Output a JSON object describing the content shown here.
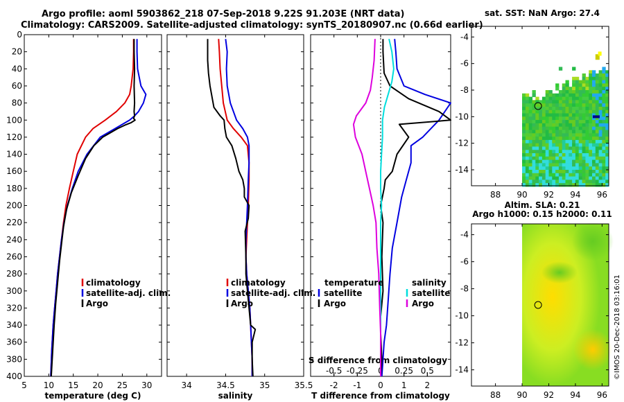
{
  "title": {
    "line1": "Argo profile: aoml 5903862_218 07-Sep-2018 9.22S 91.203E (NRT data)",
    "line2": "Climatology: CARS2009. Satellite-adjusted climatology: synTS_20180907.nc (0.66d earlier)"
  },
  "stamp": "©IMOS 20-Dec-2018 03:16:01",
  "colors": {
    "climatology": "#e00000",
    "satellite": "#0000e0",
    "argo": "#000000",
    "sat_diff": "#00dddd",
    "sal_diff": "#dd00dd"
  },
  "depth_ticks": [
    0,
    20,
    40,
    60,
    80,
    100,
    120,
    140,
    160,
    180,
    200,
    220,
    240,
    260,
    280,
    300,
    320,
    340,
    360,
    380,
    400
  ],
  "chart_data": [
    {
      "type": "line",
      "name": "temperature",
      "xlabel": "temperature (deg C)",
      "ylabel": "depth",
      "xlim": [
        5,
        33
      ],
      "ylim": [
        400,
        0
      ],
      "xticks": [
        5,
        10,
        15,
        20,
        25,
        30
      ],
      "legend": {
        "position": "bottom-right",
        "items": [
          "climatology",
          "satellite-adj. clim.",
          "Argo"
        ]
      },
      "series": [
        {
          "name": "climatology",
          "color": "#e00000",
          "x": [
            27.3,
            27.3,
            27.2,
            26.8,
            26.5,
            25.5,
            23.8,
            21.5,
            19.0,
            17.5,
            15.8,
            15.0,
            14.2,
            13.5,
            13.0,
            12.6,
            12.2,
            11.8,
            11.5,
            11.2,
            10.9,
            10.6,
            10.4
          ],
          "y": [
            5,
            20,
            40,
            60,
            70,
            80,
            90,
            100,
            110,
            120,
            140,
            160,
            180,
            200,
            220,
            240,
            260,
            280,
            300,
            320,
            340,
            370,
            400
          ]
        },
        {
          "name": "satellite-adj. clim.",
          "color": "#0000e0",
          "x": [
            28.0,
            28.0,
            28.1,
            28.8,
            29.8,
            29.3,
            28.3,
            27.5,
            26.5,
            23.5,
            20.5,
            17.8,
            16.0,
            14.8,
            13.8,
            13.1,
            12.6,
            12.2,
            11.8,
            11.5,
            11.2,
            10.9,
            10.6,
            10.4
          ],
          "y": [
            5,
            20,
            40,
            60,
            70,
            80,
            90,
            95,
            100,
            110,
            120,
            140,
            160,
            180,
            200,
            220,
            240,
            260,
            280,
            300,
            320,
            340,
            370,
            400
          ]
        },
        {
          "name": "Argo",
          "color": "#000000",
          "x": [
            27.4,
            27.4,
            27.5,
            27.4,
            27.5,
            27.4,
            27.5,
            27.3,
            27.6,
            26.8,
            25.5,
            24.0,
            22.5,
            21.0,
            19.2,
            17.5,
            16.0,
            14.6,
            13.6,
            13.0,
            12.6,
            12.2,
            11.8,
            11.4,
            11.1,
            10.8,
            10.5
          ],
          "y": [
            5,
            20,
            40,
            60,
            80,
            90,
            95,
            98,
            100,
            103,
            106,
            110,
            115,
            120,
            130,
            145,
            165,
            185,
            205,
            225,
            245,
            265,
            290,
            315,
            340,
            370,
            400
          ]
        }
      ]
    },
    {
      "type": "line",
      "name": "salinity",
      "xlabel": "salinity",
      "ylabel": "depth",
      "xlim": [
        33.75,
        35.5
      ],
      "ylim": [
        400,
        0
      ],
      "xticks": [
        34,
        34.5,
        35,
        35.5
      ],
      "legend": {
        "position": "bottom-right",
        "items": [
          "climatology",
          "satellite-adj. clim.",
          "Argo"
        ]
      },
      "series": [
        {
          "name": "climatology",
          "color": "#e00000",
          "x": [
            34.41,
            34.42,
            34.43,
            34.45,
            34.47,
            34.52,
            34.6,
            34.7,
            34.78,
            34.8,
            34.8,
            34.79,
            34.78,
            34.77,
            34.76,
            34.77,
            34.79,
            34.81,
            34.82,
            34.83,
            34.84,
            34.84
          ],
          "y": [
            5,
            20,
            40,
            60,
            80,
            100,
            110,
            120,
            130,
            150,
            170,
            200,
            220,
            240,
            260,
            280,
            300,
            320,
            340,
            360,
            380,
            400
          ]
        },
        {
          "name": "satellite-adj. clim.",
          "color": "#0000e0",
          "x": [
            34.5,
            34.52,
            34.51,
            34.52,
            34.56,
            34.64,
            34.72,
            34.78,
            34.8,
            34.8,
            34.79,
            34.78,
            34.77,
            34.76,
            34.76,
            34.77,
            34.79,
            34.81,
            34.82,
            34.83,
            34.84,
            34.84
          ],
          "y": [
            5,
            20,
            40,
            60,
            80,
            100,
            110,
            120,
            130,
            150,
            170,
            200,
            220,
            240,
            260,
            280,
            300,
            320,
            340,
            360,
            380,
            400
          ]
        },
        {
          "name": "Argo",
          "color": "#000000",
          "x": [
            34.27,
            34.27,
            34.27,
            34.28,
            34.3,
            34.35,
            34.43,
            34.48,
            34.49,
            34.51,
            34.58,
            34.63,
            34.67,
            34.72,
            34.74,
            34.74,
            34.8,
            34.79,
            34.75,
            34.76,
            34.76,
            34.78,
            34.8,
            34.82,
            34.88,
            34.84,
            34.84,
            34.85
          ],
          "y": [
            5,
            20,
            30,
            45,
            60,
            85,
            95,
            100,
            110,
            120,
            130,
            145,
            160,
            170,
            180,
            190,
            200,
            215,
            230,
            260,
            280,
            300,
            320,
            340,
            345,
            360,
            380,
            400
          ]
        }
      ]
    },
    {
      "type": "line",
      "name": "difference",
      "xlabel": "T difference from climatology",
      "ylabel": "depth",
      "xlim": [
        -3,
        3
      ],
      "ylim": [
        400,
        0
      ],
      "xticks": [
        -2,
        -1,
        0,
        1,
        2
      ],
      "x2label": "S difference from climatology",
      "x2ticks": [
        -0.5,
        -0.25,
        0,
        0.25,
        0.5
      ],
      "x2lim": [
        -0.75,
        0.75
      ],
      "legend": {
        "position": "bottom",
        "temperature_title": "temperature",
        "salinity_title": "salinity",
        "items": [
          "satellite",
          "Argo",
          "satellite",
          "Argo"
        ]
      },
      "series": [
        {
          "name": "T satellite",
          "color": "#0000e0",
          "x": [
            0.6,
            0.65,
            0.7,
            1.0,
            1.9,
            3.0,
            2.5,
            1.8,
            1.3,
            1.3,
            1.1,
            0.9,
            0.7,
            0.5,
            0.4,
            0.35,
            0.3,
            0.25,
            0.15,
            0.1,
            0.05
          ],
          "y": [
            5,
            20,
            40,
            60,
            70,
            80,
            100,
            120,
            130,
            150,
            170,
            190,
            220,
            250,
            280,
            300,
            320,
            340,
            360,
            380,
            400
          ]
        },
        {
          "name": "T Argo",
          "color": "#000000",
          "x": [
            0.1,
            0.1,
            0.15,
            0.4,
            1.2,
            2.5,
            3.0,
            0.8,
            1.2,
            0.7,
            0.5,
            0.2,
            0.15,
            0.0,
            0.1,
            0.05,
            0.1,
            0.0,
            0.0,
            0.05,
            0.0
          ],
          "y": [
            5,
            20,
            45,
            60,
            75,
            90,
            100,
            105,
            120,
            140,
            160,
            170,
            180,
            200,
            220,
            260,
            300,
            330,
            350,
            380,
            400
          ]
        },
        {
          "name": "S satellite",
          "color": "#00dddd",
          "x": [
            0.09,
            0.12,
            0.14,
            0.12,
            0.08,
            0.04,
            0.02,
            0.02,
            0.01,
            0.0,
            0.0,
            0.01,
            0.0,
            0.0,
            0.0,
            0.0,
            0.0,
            0.0,
            0.0,
            0.0
          ],
          "y": [
            5,
            20,
            40,
            55,
            70,
            85,
            100,
            120,
            140,
            160,
            180,
            200,
            220,
            260,
            300,
            320,
            340,
            360,
            380,
            400
          ]
        },
        {
          "name": "S Argo",
          "color": "#dd00dd",
          "x": [
            -0.06,
            -0.07,
            -0.09,
            -0.11,
            -0.16,
            -0.26,
            -0.29,
            -0.27,
            -0.2,
            -0.15,
            -0.11,
            -0.08,
            -0.05,
            -0.04,
            -0.02,
            -0.01,
            0.0,
            0.0,
            0.0
          ],
          "y": [
            5,
            30,
            50,
            65,
            80,
            95,
            105,
            120,
            140,
            165,
            185,
            200,
            220,
            250,
            280,
            320,
            350,
            380,
            400
          ]
        }
      ]
    },
    {
      "type": "heatmap",
      "name": "sst_map",
      "title": "sat. SST: NaN Argo: 27.4",
      "xticks": [
        88,
        90,
        92,
        94,
        96
      ],
      "yticks": [
        -4,
        -6,
        -8,
        -10,
        -12,
        -14
      ],
      "xlim": [
        86.2,
        96.5
      ],
      "ylim": [
        -15.2,
        -3.2
      ],
      "argo_position": {
        "lon": 91.2,
        "lat": -9.2
      },
      "data_extent": {
        "lon": [
          90,
          96.5
        ],
        "lat": [
          -15.2,
          -6
        ]
      }
    },
    {
      "type": "heatmap",
      "name": "sla_map",
      "title_line1": "Altim. SLA: 0.21",
      "title_line2": "Argo h1000: 0.15 h2000: 0.11",
      "xticks": [
        88,
        90,
        92,
        94,
        96
      ],
      "yticks": [
        -4,
        -6,
        -8,
        -10,
        -12,
        -14
      ],
      "xlim": [
        86.2,
        96.5
      ],
      "ylim": [
        -15.2,
        -3.2
      ],
      "argo_position": {
        "lon": 91.2,
        "lat": -9.2
      },
      "data_extent": {
        "lon": [
          90,
          96.5
        ],
        "lat": [
          -15.2,
          -3.2
        ]
      }
    }
  ]
}
